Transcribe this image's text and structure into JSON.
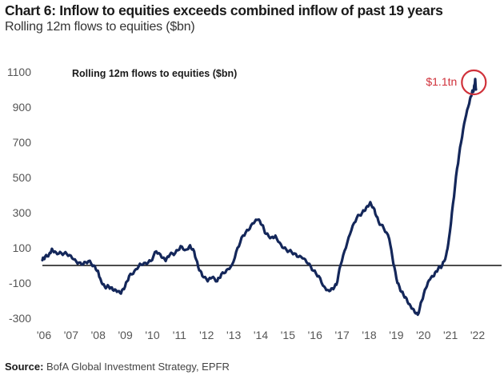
{
  "chart_data": {
    "type": "line",
    "title": "Chart 6: Inflow to equities exceeds combined inflow of past 19 years",
    "subtitle": "Rolling 12m flows to equities ($bn)",
    "inner_label": "Rolling 12m flows to equities ($bn)",
    "source_label": "Source:",
    "source_text": "BofA Global Investment Strategy, EPFR",
    "xlabel": "",
    "ylabel": "",
    "ylim": [
      -300,
      1100
    ],
    "xlim": [
      2006,
      2022.9
    ],
    "yticks": [
      1100,
      900,
      700,
      500,
      300,
      100,
      -100,
      -300
    ],
    "ytick_labels": [
      "1100",
      "900",
      "700",
      "500",
      "300",
      "100",
      "-100",
      "-300"
    ],
    "xticks": [
      2006,
      2007,
      2008,
      2009,
      2010,
      2011,
      2012,
      2013,
      2014,
      2015,
      2016,
      2017,
      2018,
      2019,
      2020,
      2021,
      2022
    ],
    "xtick_labels": [
      "'06",
      "'07",
      "'08",
      "'09",
      "'10",
      "'11",
      "'12",
      "'13",
      "'14",
      "'15",
      "'16",
      "'17",
      "'18",
      "'19",
      "'20",
      "'21",
      "'22"
    ],
    "reference_line": 0,
    "grid": false,
    "legend": "none",
    "line_color": "#14275a",
    "annotation": {
      "text": "$1.1tn",
      "color": "#d0313a",
      "x": 2021.95,
      "y": 1050
    },
    "series": [
      {
        "name": "Rolling 12m flows to equities ($bn)",
        "x": [
          2006.0,
          2006.1,
          2006.25,
          2006.35,
          2006.5,
          2006.7,
          2006.9,
          2007.1,
          2007.3,
          2007.5,
          2007.7,
          2007.9,
          2008.05,
          2008.15,
          2008.3,
          2008.45,
          2008.6,
          2008.75,
          2008.9,
          2009.05,
          2009.2,
          2009.4,
          2009.6,
          2009.8,
          2010.0,
          2010.2,
          2010.4,
          2010.55,
          2010.7,
          2010.9,
          2011.1,
          2011.3,
          2011.45,
          2011.6,
          2011.75,
          2011.9,
          2012.1,
          2012.25,
          2012.45,
          2012.6,
          2012.8,
          2013.0,
          2013.2,
          2013.4,
          2013.6,
          2013.8,
          2013.95,
          2014.1,
          2014.25,
          2014.45,
          2014.6,
          2014.8,
          2015.0,
          2015.2,
          2015.4,
          2015.6,
          2015.8,
          2016.0,
          2016.2,
          2016.4,
          2016.55,
          2016.7,
          2016.85,
          2017.0,
          2017.2,
          2017.4,
          2017.6,
          2017.8,
          2017.95,
          2018.1,
          2018.25,
          2018.4,
          2018.6,
          2018.8,
          2018.95,
          2019.1,
          2019.25,
          2019.4,
          2019.55,
          2019.7,
          2019.85,
          2020.0,
          2020.15,
          2020.3,
          2020.45,
          2020.6,
          2020.75,
          2020.9,
          2021.0,
          2021.15,
          2021.3,
          2021.45,
          2021.6,
          2021.75,
          2021.85,
          2021.92,
          2021.97,
          2022.0
        ],
        "y": [
          30,
          50,
          65,
          95,
          75,
          70,
          65,
          40,
          10,
          5,
          25,
          0,
          -30,
          -80,
          -120,
          -120,
          -140,
          -150,
          -160,
          -120,
          -60,
          -30,
          10,
          15,
          25,
          80,
          45,
          25,
          60,
          70,
          110,
          90,
          115,
          80,
          -10,
          -60,
          -90,
          -70,
          -90,
          -50,
          -25,
          5,
          100,
          170,
          200,
          240,
          260,
          230,
          180,
          160,
          170,
          120,
          90,
          75,
          50,
          40,
          10,
          -30,
          -60,
          -120,
          -140,
          -130,
          -110,
          0,
          100,
          200,
          270,
          300,
          330,
          360,
          320,
          250,
          210,
          150,
          10,
          -100,
          -150,
          -180,
          -220,
          -250,
          -280,
          -200,
          -130,
          -80,
          -60,
          -20,
          0,
          60,
          150,
          350,
          550,
          700,
          830,
          920,
          980,
          1000,
          1060,
          1000
        ]
      }
    ]
  }
}
